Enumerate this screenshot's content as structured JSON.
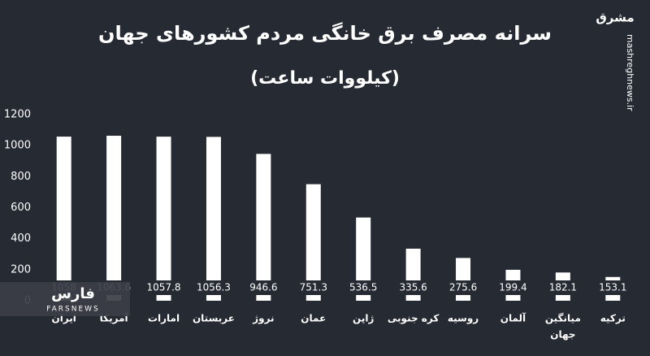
{
  "chart_data": {
    "type": "bar",
    "title": "سرانه مصرف برق خانگی مردم کشورهای جهان",
    "subtitle": "(کیلووات ساعت)",
    "categories": [
      "ایران",
      "آمریکا",
      "امارات",
      "عربستان",
      "نروژ",
      "عمان",
      "ژاپن",
      "کره جنوبی",
      "روسیه",
      "آلمان",
      [
        "میانگین",
        "جهان"
      ],
      "ترکیه"
    ],
    "values": [
      1058,
      1063.6,
      1057.8,
      1056.3,
      946.6,
      751.3,
      536.5,
      335.6,
      275.6,
      199.4,
      182.1,
      153.1
    ],
    "color": "#ffffff",
    "ylim": [
      0,
      1200
    ],
    "yticks": [
      0,
      200,
      400,
      600,
      800,
      1000,
      1200
    ],
    "grid": false
  },
  "watermarks": {
    "site": "mashreghnews.ir",
    "logo": "مشرق",
    "agency": "فارس",
    "agency_en": "FARSNEWS"
  }
}
